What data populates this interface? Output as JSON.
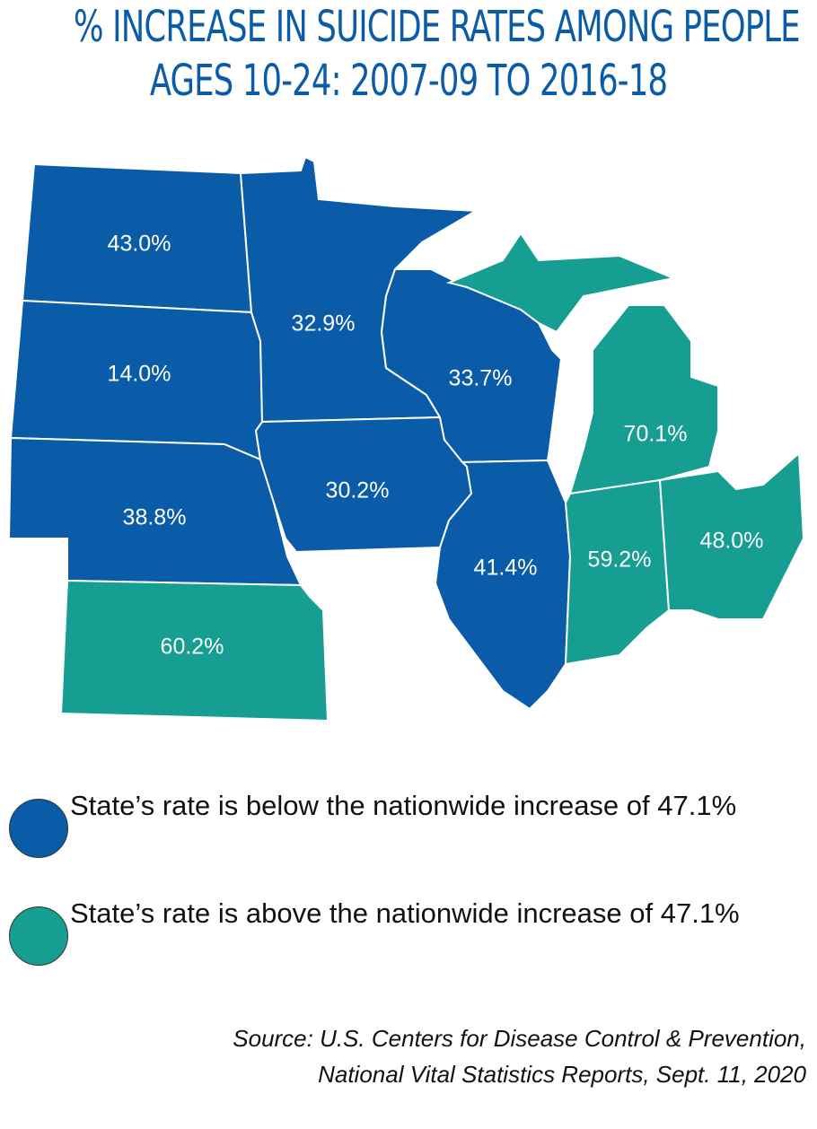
{
  "title": [
    "% INCREASE IN SUICIDE RATES AMONG PEOPLE",
    "AGES 10-24:  2007-09 TO 2016-18"
  ],
  "regions": [
    {
      "label": "43.0%",
      "color": "#0b5ca8"
    },
    {
      "label": "14.0%",
      "color": "#0b5ca8"
    },
    {
      "label": "38.8%",
      "color": "#0b5ca8"
    },
    {
      "label": "60.2%",
      "color": "#169e92"
    },
    {
      "label": "32.9%",
      "color": "#0b5ca8"
    },
    {
      "label": "30.2%",
      "color": "#0b5ca8"
    },
    {
      "label": "33.7%",
      "color": "#0b5ca8"
    },
    {
      "label": "41.4%",
      "color": "#0b5ca8"
    },
    {
      "label": "70.1%",
      "color": "#169e92"
    },
    {
      "label": "59.2%",
      "color": "#169e92"
    },
    {
      "label": "48.0%",
      "color": "#169e92"
    }
  ],
  "legend": [
    {
      "label": "State’s rate is below the nationwide increase of 47.1%",
      "color": "#0b5ca8"
    },
    {
      "label": "State’s rate is above the nationwide increase of 47.1%",
      "color": "#169e92"
    }
  ],
  "source": [
    "Source: U.S. Centers for Disease Control & Prevention,",
    "National Vital Statistics Reports, Sept. 11, 2020"
  ]
}
